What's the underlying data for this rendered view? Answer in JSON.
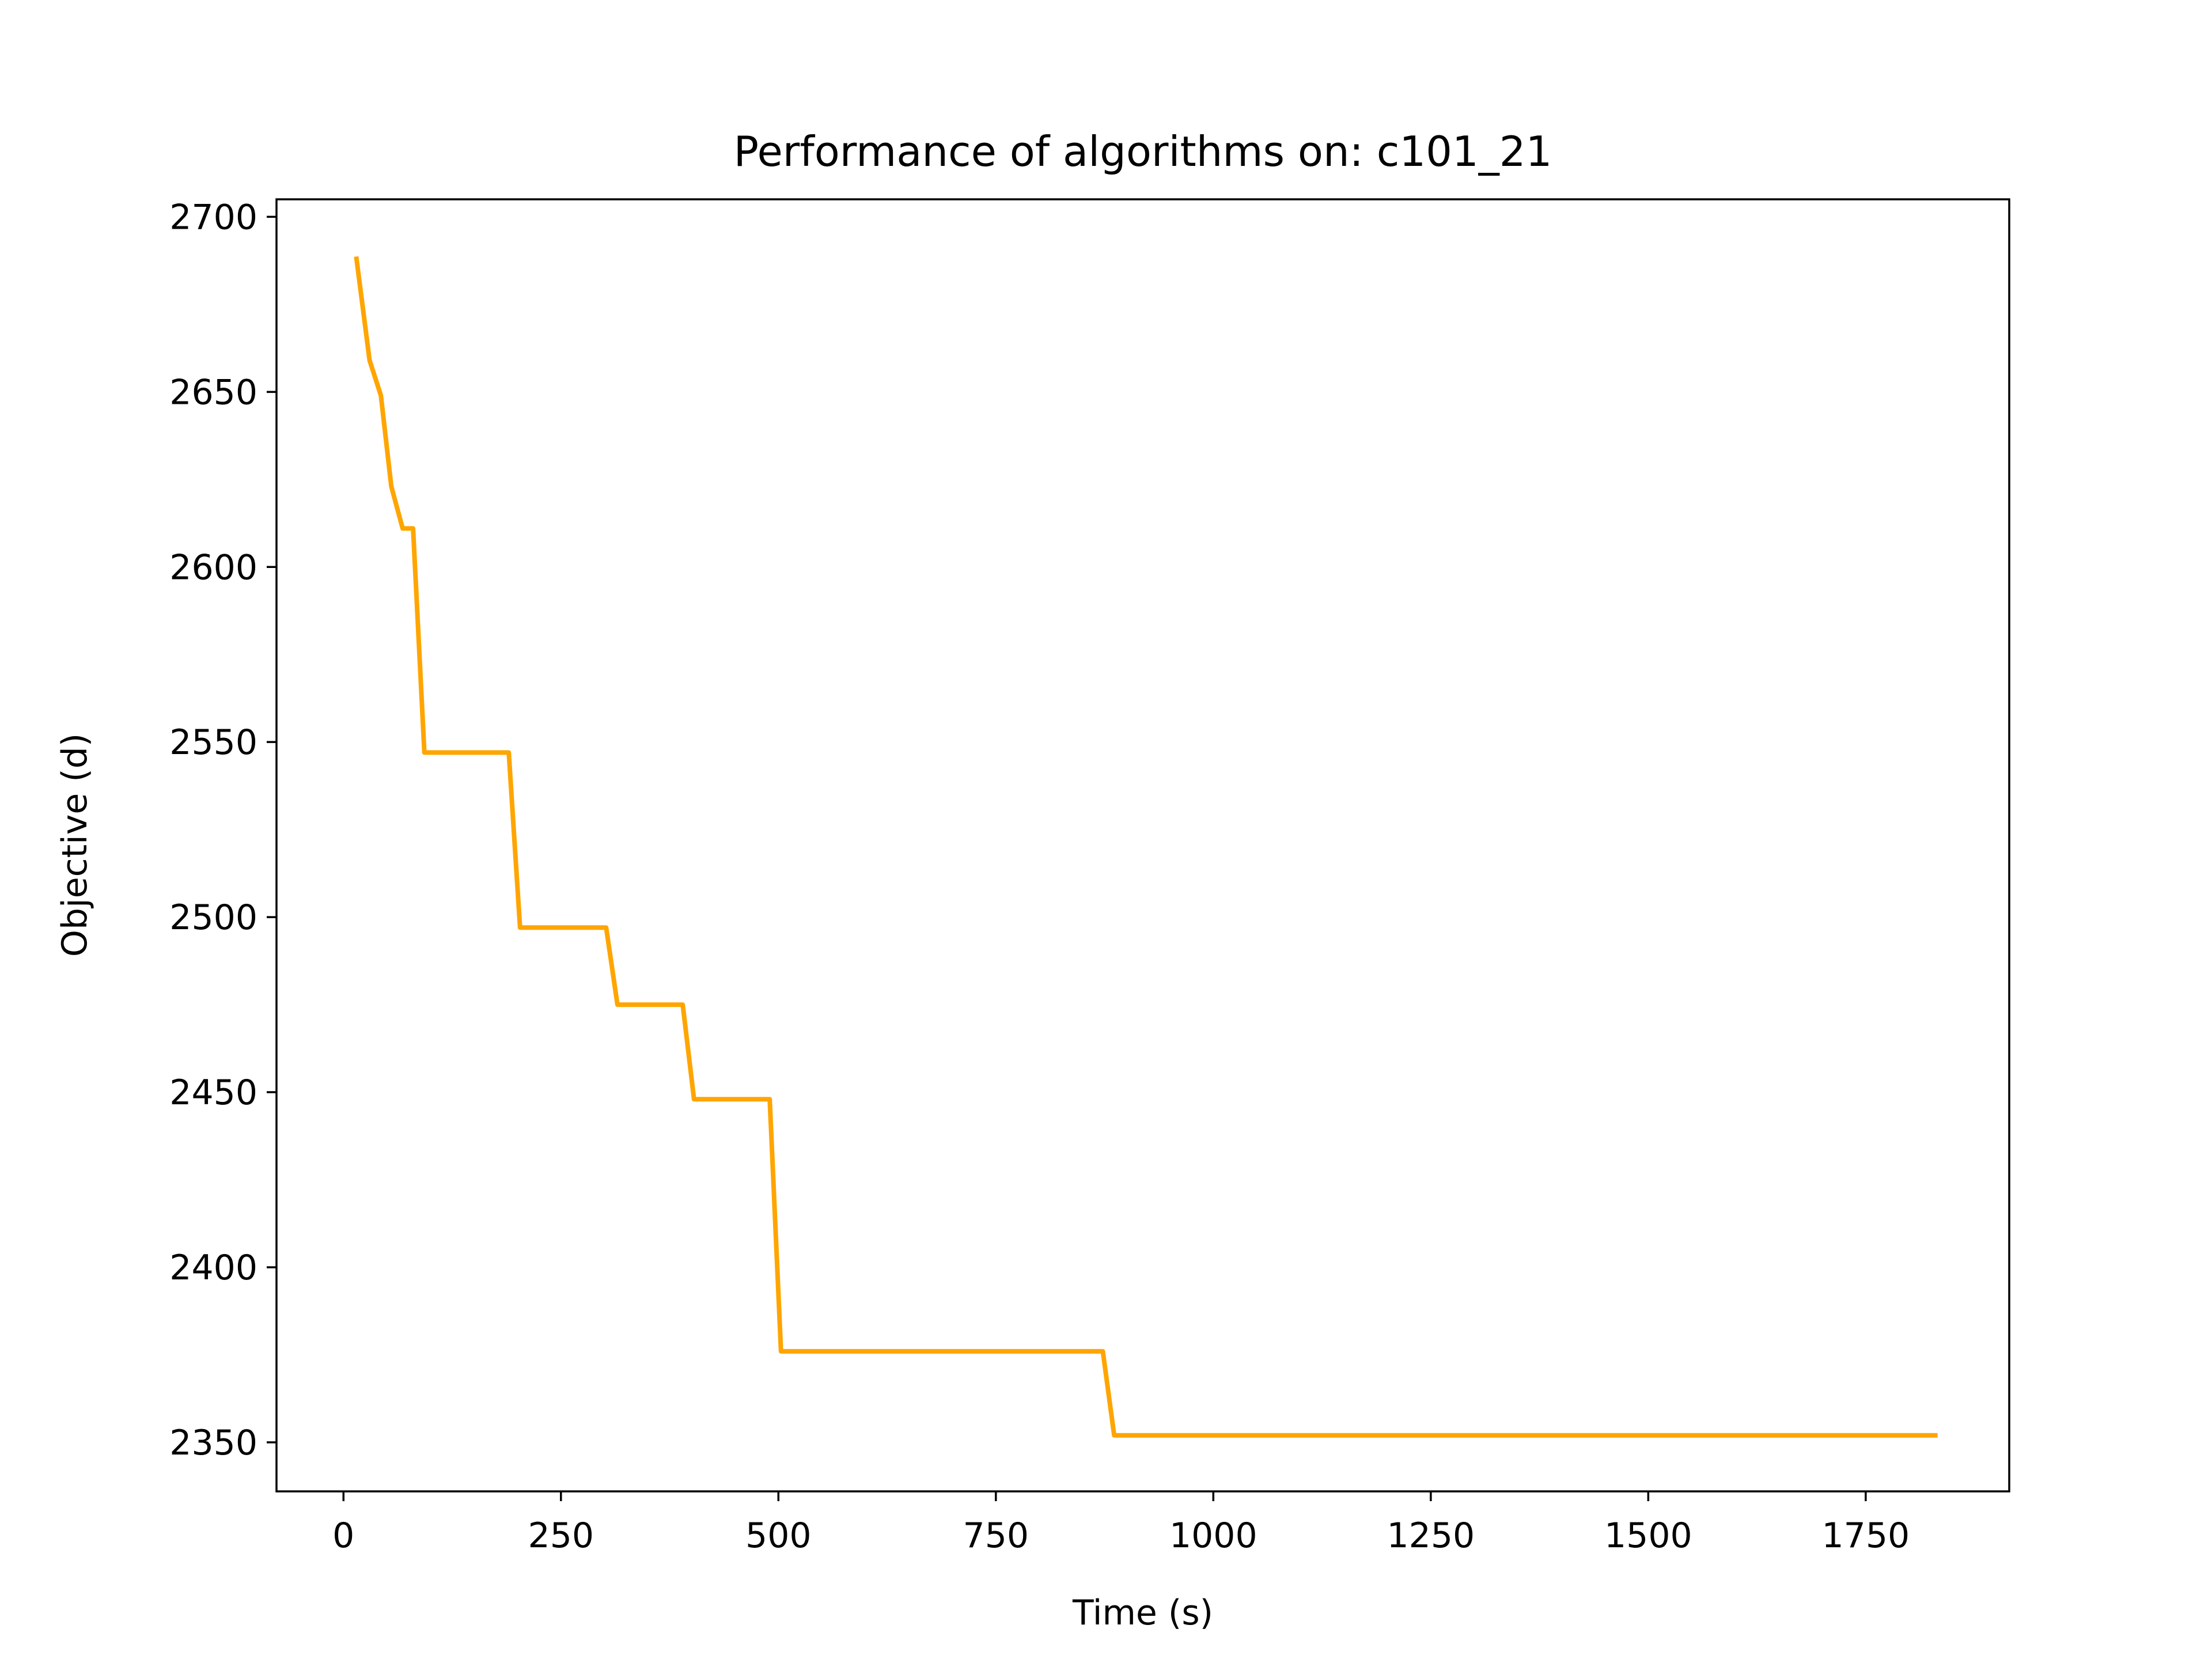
{
  "chart_data": {
    "type": "line",
    "title": "Performance of algorithms on: c101_21",
    "xlabel": "Time (s)",
    "ylabel": "Objective (d)",
    "xlim": [
      -77,
      1915
    ],
    "ylim": [
      2336,
      2705
    ],
    "xticks": [
      0,
      250,
      500,
      750,
      1000,
      1250,
      1500,
      1750
    ],
    "yticks": [
      2350,
      2400,
      2450,
      2500,
      2550,
      2600,
      2650,
      2700
    ],
    "grid": false,
    "legend": "none",
    "series": [
      {
        "color": "#ffa500",
        "x": [
          15,
          30,
          43,
          55,
          68,
          80,
          93,
          190,
          203,
          302,
          315,
          390,
          403,
          490,
          503,
          873,
          886,
          1830
        ],
        "y": [
          2688,
          2659,
          2649,
          2623,
          2611,
          2611,
          2547,
          2547,
          2497,
          2497,
          2475,
          2475,
          2448,
          2448,
          2376,
          2376,
          2352,
          2352
        ]
      }
    ]
  }
}
